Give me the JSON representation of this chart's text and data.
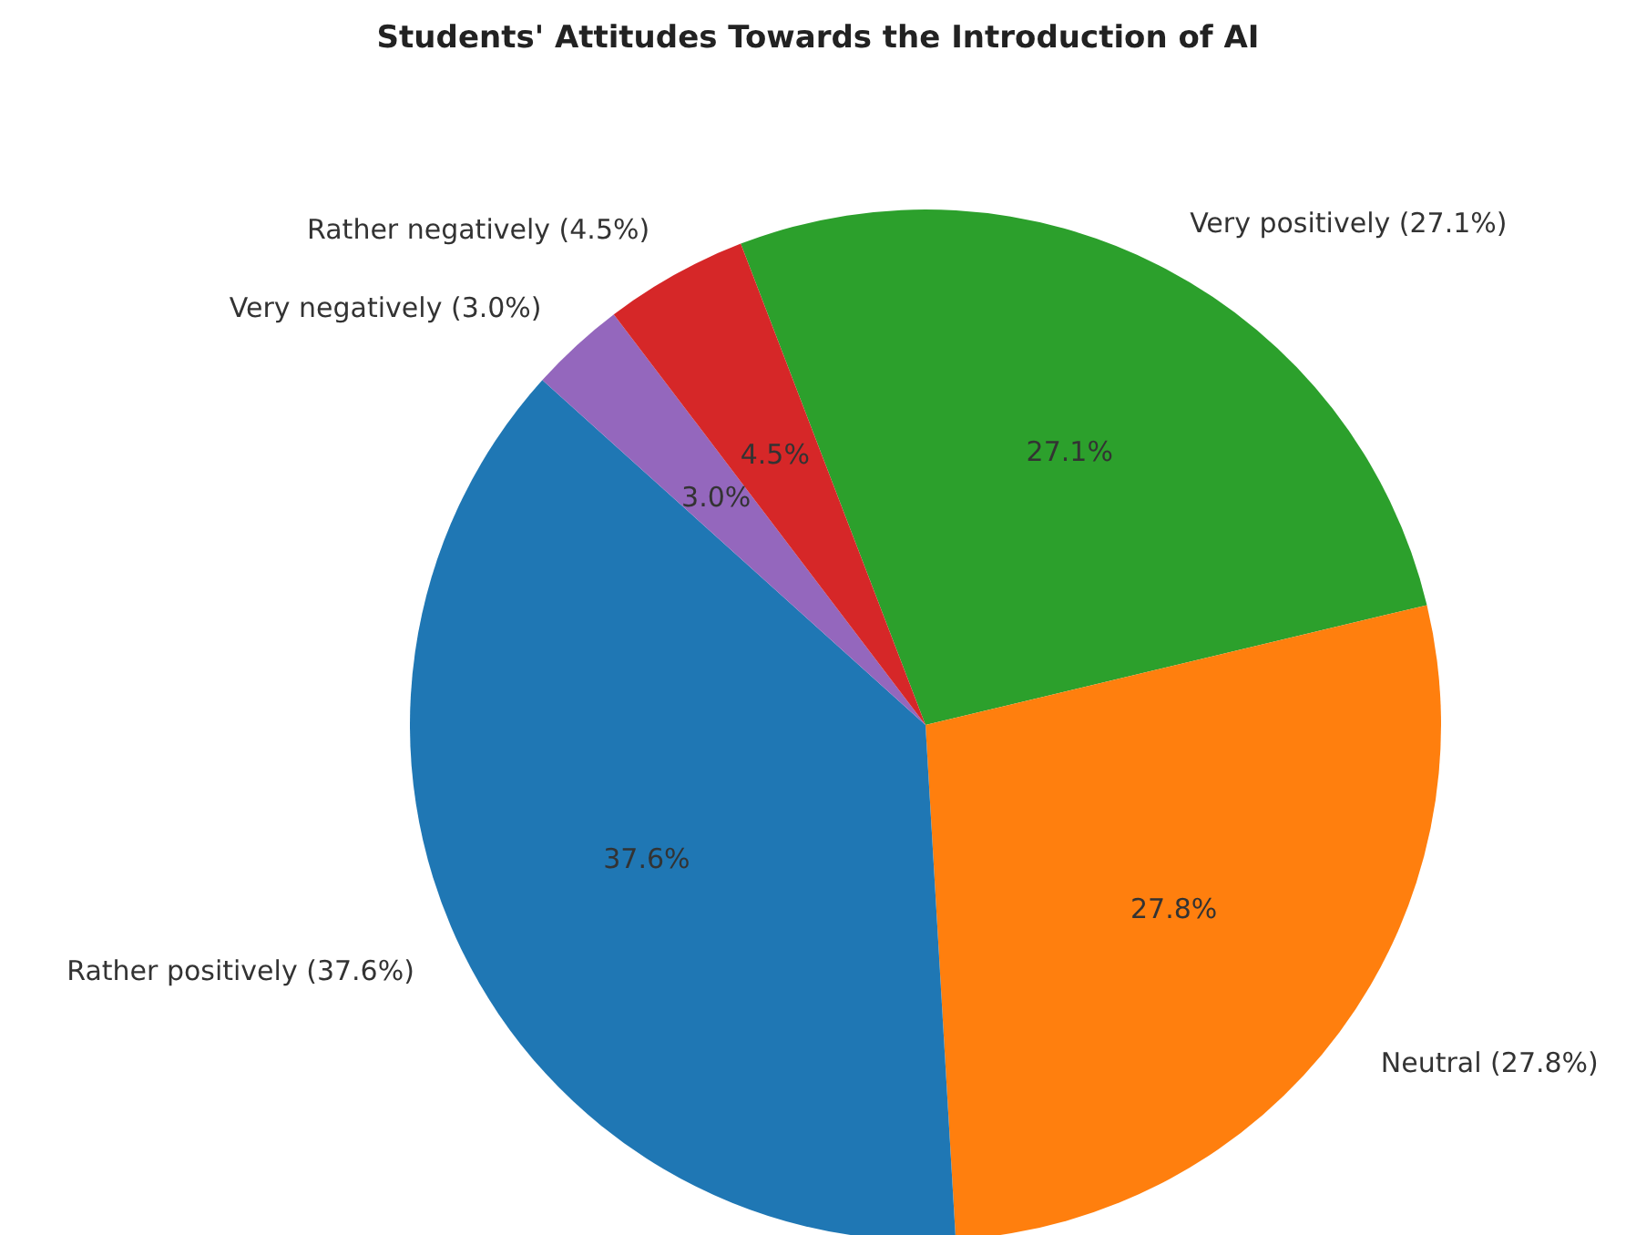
{
  "chart_data": {
    "type": "pie",
    "title": "Students' Attitudes Towards the Introduction of AI",
    "categories": [
      "Very positively (27.1%)",
      "Neutral (27.8%)",
      "Rather positively (37.6%)",
      "Very negatively (3.0%)",
      "Rather negatively (4.5%)"
    ],
    "values": [
      27.1,
      27.8,
      37.6,
      3.0,
      4.5
    ],
    "value_labels": [
      "27.1%",
      "27.8%",
      "37.6%",
      "3.0%",
      "4.5%"
    ],
    "colors": [
      "#2ca02c",
      "#ff7f0e",
      "#1f77b4",
      "#9467bd",
      "#d62728"
    ]
  }
}
